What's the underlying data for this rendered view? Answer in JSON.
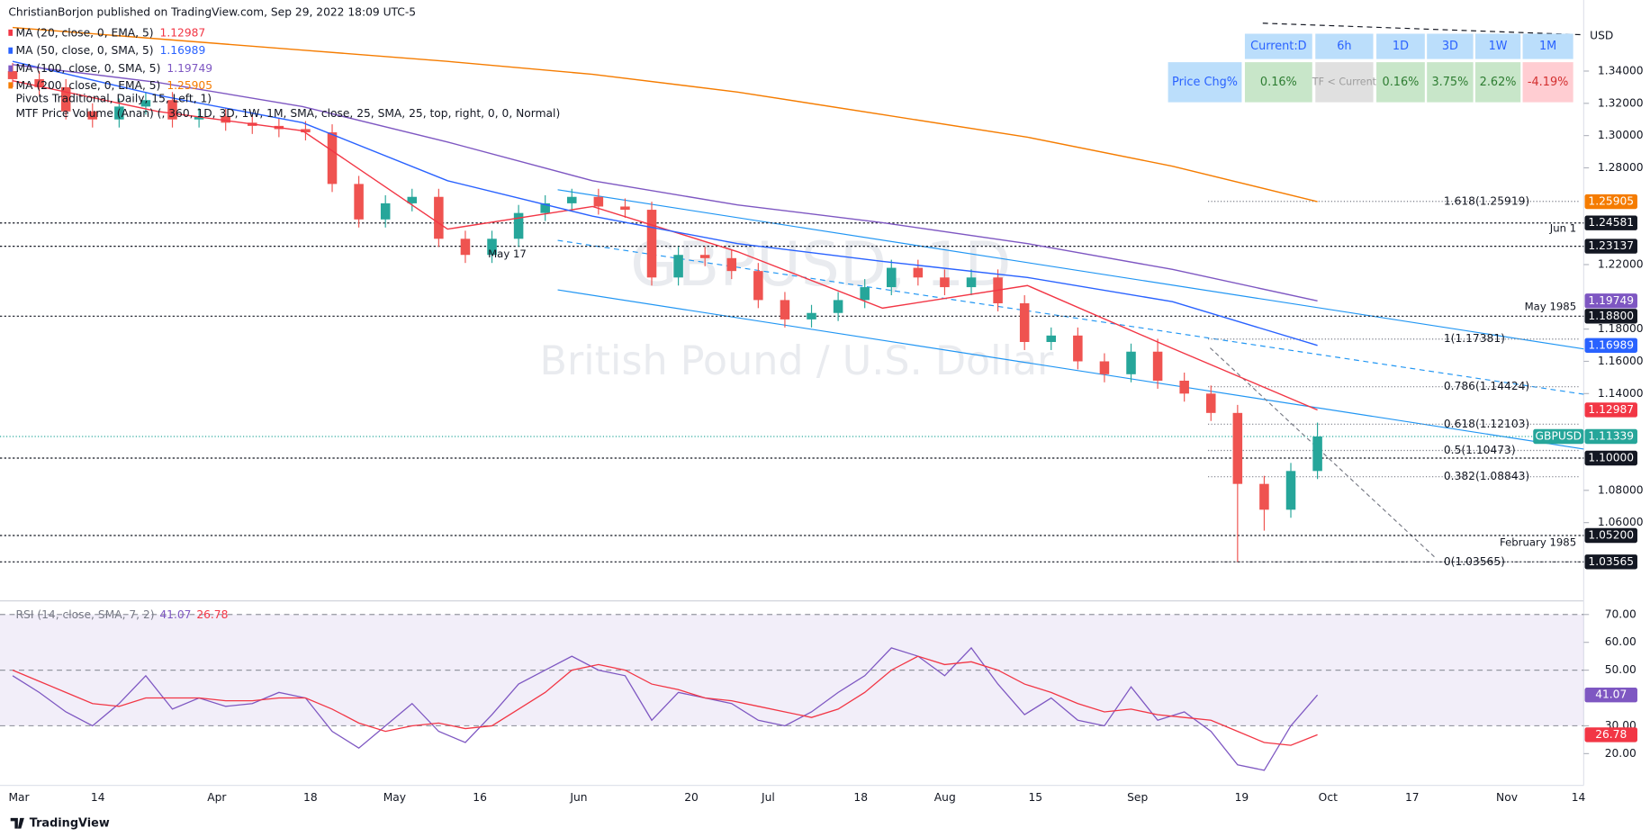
{
  "header": {
    "publisher": "ChristianBorjon published on TradingView.com, Sep 29, 2022 18:09 UTC-5",
    "footer": "TradingView",
    "currency": "USD"
  },
  "chart_data": {
    "type": "candlestick",
    "symbol_watermark": "GBPUSD, 1D",
    "description_watermark": "British Pound / U.S. Dollar",
    "symbol_badge": "GBPUSD",
    "up_color": "#26a69a",
    "down_color": "#ef5350",
    "open": [
      1.34,
      1.335,
      1.33,
      1.315,
      1.31,
      1.318,
      1.322,
      1.31,
      1.312,
      1.308,
      1.306,
      1.304,
      1.302,
      1.27,
      1.248,
      1.258,
      1.262,
      1.236,
      1.226,
      1.236,
      1.252,
      1.258,
      1.262,
      1.256,
      1.254,
      1.212,
      1.226,
      1.224,
      1.216,
      1.198,
      1.186,
      1.19,
      1.198,
      1.206,
      1.218,
      1.212,
      1.206,
      1.212,
      1.196,
      1.172,
      1.176,
      1.16,
      1.152,
      1.166,
      1.148,
      1.14,
      1.128,
      1.084,
      1.068,
      1.092
    ],
    "high": [
      1.345,
      1.34,
      1.335,
      1.32,
      1.323,
      1.327,
      1.327,
      1.317,
      1.317,
      1.313,
      1.311,
      1.309,
      1.307,
      1.275,
      1.263,
      1.267,
      1.267,
      1.241,
      1.241,
      1.257,
      1.263,
      1.267,
      1.267,
      1.261,
      1.259,
      1.231,
      1.231,
      1.229,
      1.221,
      1.203,
      1.195,
      1.203,
      1.211,
      1.223,
      1.223,
      1.217,
      1.217,
      1.217,
      1.201,
      1.181,
      1.181,
      1.165,
      1.171,
      1.174,
      1.153,
      1.145,
      1.133,
      1.089,
      1.097,
      1.122
    ],
    "low": [
      1.33,
      1.325,
      1.31,
      1.305,
      1.305,
      1.313,
      1.305,
      1.305,
      1.303,
      1.301,
      1.299,
      1.297,
      1.265,
      1.243,
      1.243,
      1.253,
      1.231,
      1.221,
      1.221,
      1.231,
      1.247,
      1.253,
      1.251,
      1.249,
      1.207,
      1.207,
      1.219,
      1.211,
      1.193,
      1.181,
      1.181,
      1.185,
      1.193,
      1.201,
      1.207,
      1.201,
      1.201,
      1.191,
      1.167,
      1.167,
      1.155,
      1.147,
      1.147,
      1.143,
      1.135,
      1.123,
      1.03565,
      1.055,
      1.063,
      1.087
    ],
    "close": [
      1.335,
      1.33,
      1.315,
      1.31,
      1.318,
      1.322,
      1.31,
      1.312,
      1.308,
      1.306,
      1.304,
      1.302,
      1.27,
      1.248,
      1.258,
      1.262,
      1.236,
      1.226,
      1.236,
      1.252,
      1.258,
      1.262,
      1.256,
      1.254,
      1.212,
      1.226,
      1.224,
      1.216,
      1.198,
      1.186,
      1.19,
      1.198,
      1.206,
      1.218,
      1.212,
      1.206,
      1.212,
      1.196,
      1.172,
      1.176,
      1.16,
      1.152,
      1.166,
      1.148,
      1.14,
      1.128,
      1.084,
      1.068,
      1.092,
      1.11339
    ],
    "ylim": [
      1.018,
      1.371
    ],
    "yticks": [
      {
        "value": 1.34,
        "label": "1.34000"
      },
      {
        "value": 1.32,
        "label": "1.32000"
      },
      {
        "value": 1.3,
        "label": "1.30000"
      },
      {
        "value": 1.28,
        "label": "1.28000"
      },
      {
        "value": 1.22,
        "label": "1.22000"
      },
      {
        "value": 1.18,
        "label": "1.18000"
      },
      {
        "value": 1.16,
        "label": "1.16000"
      },
      {
        "value": 1.14,
        "label": "1.14000"
      },
      {
        "value": 1.08,
        "label": "1.08000"
      },
      {
        "value": 1.06,
        "label": "1.06000"
      }
    ],
    "xticks": [
      "Mar",
      "14",
      "Apr",
      "18",
      "May",
      "16",
      "Jun",
      "20",
      "Jul",
      "18",
      "Aug",
      "15",
      "Sep",
      "19",
      "Oct",
      "17",
      "Nov",
      "14"
    ],
    "series": [
      {
        "name": "MA (20, close, 0, EMA, 5)",
        "color": "#f23645",
        "values": [
          1.334,
          1.315,
          1.303,
          1.242,
          1.256,
          1.228,
          1.193,
          1.207,
          1.168,
          1.12987
        ]
      },
      {
        "name": "MA (50, close, 0, SMA, 5)",
        "color": "#2962ff",
        "values": [
          1.346,
          1.325,
          1.308,
          1.272,
          1.25,
          1.233,
          1.222,
          1.212,
          1.197,
          1.16989
        ]
      },
      {
        "name": "MA (100, close, 0, SMA, 5)",
        "color": "#7e57c2",
        "values": [
          1.344,
          1.333,
          1.318,
          1.296,
          1.272,
          1.257,
          1.246,
          1.233,
          1.217,
          1.19749
        ]
      },
      {
        "name": "MA (200, close, 0, EMA, 5)",
        "color": "#f57c00",
        "values": [
          1.367,
          1.36,
          1.353,
          1.346,
          1.338,
          1.327,
          1.313,
          1.299,
          1.281,
          1.25905
        ]
      }
    ],
    "indicators_legend": [
      "Pivots Traditional, Daily, 15, Left, 1)",
      "MTF Price Volume (Anan) (, 360, 1D, 3D, 1W, 1M, SMA, close, 25, SMA, 25, top, right, 0, 0, Normal)"
    ],
    "levels": [
      1.24581,
      1.23137,
      {
        "value": 1.188,
        "label": "1.18800"
      },
      {
        "value": 1.1,
        "label": "1.10000"
      },
      {
        "value": 1.052,
        "label": "1.05200"
      },
      1.03565
    ],
    "fib_levels": [
      {
        "value": 1.25919,
        "label": "1.618(1.25919)"
      },
      {
        "value": 1.17381,
        "label": "1(1.17381)"
      },
      {
        "value": 1.14424,
        "label": "0.786(1.14424)"
      },
      {
        "value": 1.12103,
        "label": "0.618(1.12103)"
      },
      {
        "value": 1.10473,
        "label": "0.5(1.10473)"
      },
      {
        "value": 1.08843,
        "label": "0.382(1.08843)"
      },
      {
        "value": 1.03565,
        "label": "0(1.03565)"
      }
    ],
    "annotations": [
      "May 17",
      "Jun 1",
      "May 1985",
      "February 1985"
    ]
  },
  "rsi": {
    "type": "line",
    "title": "RSI (14, close, SMA, 7, 2)",
    "ylim": [
      10.5,
      73
    ],
    "band": [
      30,
      70
    ],
    "dashed": [
      30,
      50,
      70
    ],
    "yticks": [
      {
        "value": 70,
        "label": "70.00"
      },
      {
        "value": 60,
        "label": "60.00"
      },
      {
        "value": 50,
        "label": "50.00"
      },
      {
        "value": 30,
        "label": "30.00"
      },
      {
        "value": 20,
        "label": "20.00"
      }
    ],
    "series": [
      {
        "color": "#7e57c2",
        "values": [
          48,
          42,
          35,
          30,
          38,
          48,
          36,
          40,
          37,
          38,
          42,
          40,
          28,
          22,
          30,
          38,
          28,
          24,
          34,
          45,
          50,
          55,
          50,
          48,
          32,
          42,
          40,
          38,
          32,
          30,
          35,
          42,
          48,
          58,
          55,
          48,
          58,
          45,
          34,
          40,
          32,
          30,
          44,
          32,
          35,
          28,
          16,
          14,
          30,
          41.07
        ]
      },
      {
        "color": "#f23645",
        "values": [
          50,
          46,
          42,
          38,
          37,
          40,
          40,
          40,
          39,
          39,
          40,
          40,
          36,
          31,
          28,
          30,
          31,
          29,
          30,
          36,
          42,
          50,
          52,
          50,
          45,
          43,
          40,
          39,
          37,
          35,
          33,
          36,
          42,
          50,
          55,
          52,
          53,
          50,
          45,
          42,
          38,
          35,
          36,
          34,
          33,
          32,
          28,
          24,
          23,
          26.78
        ]
      }
    ]
  },
  "table": {
    "header": [
      "Current:D",
      "6h",
      "1D",
      "3D",
      "1W",
      "1M"
    ],
    "row": [
      "Price Chg%",
      "0.16%",
      "TF < Current",
      "0.16%",
      "3.75%",
      "2.62%",
      "-4.19%"
    ]
  }
}
